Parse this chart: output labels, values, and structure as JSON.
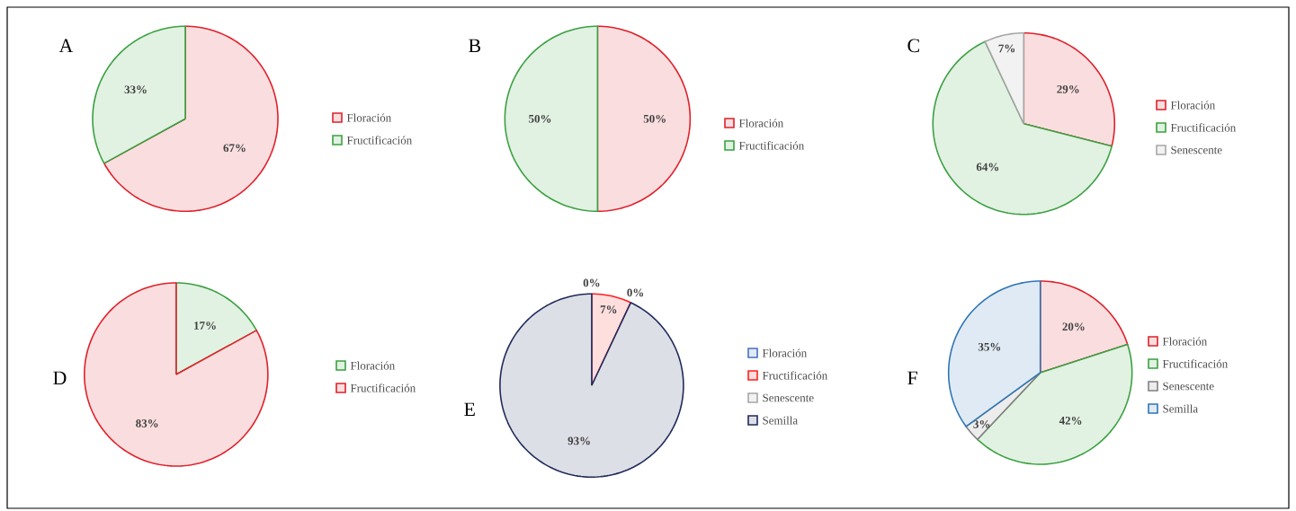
{
  "chart_data": [
    {
      "type": "pie",
      "title": "A",
      "categories": [
        "Floración",
        "Fructificación"
      ],
      "values": [
        67,
        33
      ],
      "colors": [
        "#e0202a",
        "#3aa040"
      ],
      "value_labels": [
        "67%",
        "33%"
      ],
      "legend": "right"
    },
    {
      "type": "pie",
      "title": "B",
      "categories": [
        "Floración",
        "Fructificación"
      ],
      "values": [
        50,
        50
      ],
      "colors": [
        "#e0202a",
        "#3aa040"
      ],
      "value_labels": [
        "50%",
        "50%"
      ],
      "legend": "right"
    },
    {
      "type": "pie",
      "title": "C",
      "categories": [
        "Floración",
        "Fructificación",
        "Senescente"
      ],
      "values": [
        29,
        64,
        7
      ],
      "colors": [
        "#e0202a",
        "#3aa040",
        "#a6a6a6"
      ],
      "value_labels": [
        "29%",
        "64%",
        "7%"
      ],
      "legend": "right"
    },
    {
      "type": "pie",
      "title": "D",
      "categories": [
        "Floración",
        "Fructificación"
      ],
      "values": [
        17,
        83
      ],
      "colors": [
        "#3aa040",
        "#e0202a"
      ],
      "value_labels": [
        "17%",
        "83%"
      ],
      "legend": "right"
    },
    {
      "type": "pie",
      "title": "E",
      "categories": [
        "Floración",
        "Fructificación",
        "Senescente",
        "Semilla"
      ],
      "values": [
        0,
        7,
        0,
        93
      ],
      "colors": [
        "#4472c4",
        "#ff2020",
        "#a6a6a6",
        "#1f2a5a"
      ],
      "value_labels": [
        "0%",
        "7%",
        "0%",
        "93%"
      ],
      "legend": "right"
    },
    {
      "type": "pie",
      "title": "F",
      "categories": [
        "Floración",
        "Fructificación",
        "Senescente",
        "Semilla"
      ],
      "values": [
        20,
        42,
        3,
        35
      ],
      "colors": [
        "#e0202a",
        "#3aa040",
        "#808080",
        "#2e75b6"
      ],
      "value_labels": [
        "20%",
        "42%",
        "3%",
        "35%"
      ],
      "legend": "right"
    }
  ]
}
